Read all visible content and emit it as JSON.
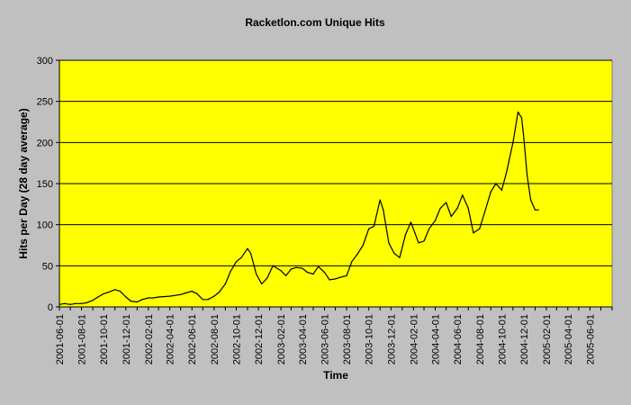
{
  "chart_data": {
    "type": "line",
    "title": "Racketlon.com Unique Hits",
    "xlabel": "Time",
    "ylabel": "Hits per Day (28 day average)",
    "ylim": [
      0,
      300
    ],
    "yticks": [
      0,
      50,
      100,
      150,
      200,
      250,
      300
    ],
    "xlim": [
      "2001-06-01",
      "2005-08-01"
    ],
    "xticks": [
      "2001-06-01",
      "2001-08-01",
      "2001-10-01",
      "2001-12-01",
      "2002-02-01",
      "2002-04-01",
      "2002-06-01",
      "2002-08-01",
      "2002-10-01",
      "2002-12-01",
      "2003-02-01",
      "2003-04-01",
      "2003-06-01",
      "2003-08-01",
      "2003-10-01",
      "2003-12-01",
      "2004-02-01",
      "2004-04-01",
      "2004-06-01",
      "2004-08-01",
      "2004-10-01",
      "2004-12-01",
      "2005-02-01",
      "2005-04-01",
      "2005-06-01"
    ],
    "grid": true,
    "legend": "none",
    "plot_background": "#ffff00",
    "series": [
      {
        "color": "#000000",
        "x": [
          "2001-06-01",
          "2001-06-15",
          "2001-07-01",
          "2001-07-15",
          "2001-08-01",
          "2001-08-15",
          "2001-09-01",
          "2001-09-15",
          "2001-10-01",
          "2001-10-15",
          "2001-11-01",
          "2001-11-15",
          "2001-12-01",
          "2001-12-15",
          "2002-01-01",
          "2002-01-15",
          "2002-02-01",
          "2002-02-15",
          "2002-03-01",
          "2002-04-01",
          "2002-05-01",
          "2002-05-15",
          "2002-06-01",
          "2002-06-15",
          "2002-07-01",
          "2002-07-15",
          "2002-08-01",
          "2002-08-15",
          "2002-09-01",
          "2002-09-15",
          "2002-10-01",
          "2002-10-15",
          "2002-11-01",
          "2002-11-10",
          "2002-11-25",
          "2002-12-10",
          "2002-12-25",
          "2003-01-10",
          "2003-02-01",
          "2003-02-15",
          "2003-03-01",
          "2003-03-15",
          "2003-04-01",
          "2003-04-15",
          "2003-05-01",
          "2003-05-15",
          "2003-06-01",
          "2003-06-15",
          "2003-07-01",
          "2003-07-15",
          "2003-08-01",
          "2003-08-15",
          "2003-09-01",
          "2003-09-15",
          "2003-10-01",
          "2003-10-15",
          "2003-11-01",
          "2003-11-10",
          "2003-11-25",
          "2003-12-10",
          "2003-12-25",
          "2004-01-10",
          "2004-01-25",
          "2004-02-05",
          "2004-02-15",
          "2004-03-01",
          "2004-03-15",
          "2004-04-01",
          "2004-04-15",
          "2004-05-01",
          "2004-05-15",
          "2004-06-01",
          "2004-06-15",
          "2004-07-01",
          "2004-07-15",
          "2004-08-01",
          "2004-08-15",
          "2004-09-01",
          "2004-09-15",
          "2004-10-01",
          "2004-10-15",
          "2004-11-01",
          "2004-11-15",
          "2004-11-25",
          "2004-12-01",
          "2004-12-10",
          "2004-12-20",
          "2005-01-01",
          "2005-01-10"
        ],
        "y": [
          3,
          4,
          3,
          4,
          4,
          5,
          8,
          12,
          16,
          18,
          21,
          19,
          12,
          7,
          6,
          9,
          11,
          11,
          12,
          13,
          15,
          17,
          19,
          16,
          9,
          9,
          13,
          18,
          28,
          43,
          55,
          60,
          71,
          65,
          40,
          28,
          35,
          50,
          44,
          38,
          46,
          48,
          47,
          42,
          40,
          49,
          42,
          33,
          34,
          36,
          38,
          55,
          65,
          75,
          95,
          98,
          130,
          118,
          78,
          65,
          60,
          88,
          103,
          90,
          78,
          80,
          95,
          105,
          120,
          127,
          110,
          120,
          136,
          120,
          90,
          95,
          115,
          140,
          150,
          142,
          165,
          200,
          237,
          230,
          205,
          160,
          130,
          118,
          118
        ]
      }
    ]
  }
}
